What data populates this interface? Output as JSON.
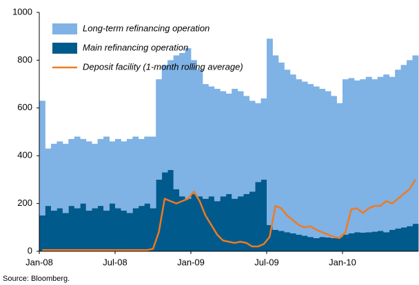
{
  "chart_data": {
    "type": "bar",
    "stacked": true,
    "source": "Source: Bloomberg.",
    "categories": [
      "Jan-08",
      null,
      null,
      null,
      null,
      null,
      null,
      null,
      null,
      null,
      null,
      null,
      null,
      "Jul-08",
      null,
      null,
      null,
      null,
      null,
      null,
      null,
      null,
      null,
      null,
      null,
      null,
      "Jan-09",
      null,
      null,
      null,
      null,
      null,
      null,
      null,
      null,
      null,
      null,
      null,
      null,
      "Jul-09",
      null,
      null,
      null,
      null,
      null,
      null,
      null,
      null,
      null,
      null,
      null,
      null,
      "Jan-10",
      null,
      null,
      null,
      null,
      null,
      null,
      null,
      null,
      null,
      null,
      null,
      null
    ],
    "ylim": [
      0,
      1000
    ],
    "yticks": [
      0,
      200,
      400,
      600,
      800,
      1000
    ],
    "legend": "upper left",
    "series": [
      {
        "name": "Main refinancing operation",
        "color": "#005a8c",
        "values": [
          150,
          190,
          170,
          180,
          160,
          190,
          180,
          200,
          170,
          180,
          190,
          170,
          200,
          180,
          170,
          160,
          180,
          190,
          200,
          180,
          300,
          330,
          340,
          260,
          230,
          220,
          240,
          230,
          220,
          230,
          210,
          230,
          240,
          220,
          230,
          240,
          250,
          290,
          300,
          110,
          90,
          85,
          80,
          75,
          70,
          65,
          60,
          55,
          60,
          58,
          55,
          60,
          70,
          75,
          80,
          78,
          80,
          82,
          85,
          80,
          90,
          95,
          100,
          105,
          115
        ]
      },
      {
        "name": "Long-term refinancing operation",
        "color": "#7fb2e5",
        "values": [
          480,
          240,
          280,
          280,
          290,
          280,
          300,
          270,
          290,
          270,
          280,
          310,
          260,
          290,
          290,
          310,
          300,
          280,
          280,
          300,
          420,
          450,
          460,
          560,
          600,
          630,
          560,
          530,
          480,
          460,
          470,
          440,
          420,
          460,
          440,
          410,
          380,
          330,
          340,
          780,
          730,
          705,
          680,
          665,
          650,
          645,
          640,
          635,
          620,
          612,
          595,
          560,
          650,
          650,
          635,
          642,
          650,
          638,
          645,
          660,
          640,
          665,
          680,
          695,
          705
        ]
      },
      {
        "name": "Deposit facility (1-month rolling average)",
        "color": "#f07a1e",
        "type": "line",
        "values": [
          5,
          5,
          5,
          5,
          5,
          5,
          5,
          5,
          5,
          5,
          5,
          5,
          5,
          5,
          5,
          5,
          5,
          5,
          5,
          10,
          80,
          220,
          210,
          200,
          210,
          220,
          250,
          210,
          150,
          110,
          70,
          45,
          40,
          35,
          40,
          35,
          20,
          20,
          30,
          60,
          190,
          180,
          150,
          130,
          110,
          100,
          105,
          90,
          80,
          70,
          60,
          55,
          80,
          175,
          180,
          160,
          180,
          190,
          190,
          210,
          200,
          220,
          240,
          260,
          300
        ]
      }
    ]
  }
}
